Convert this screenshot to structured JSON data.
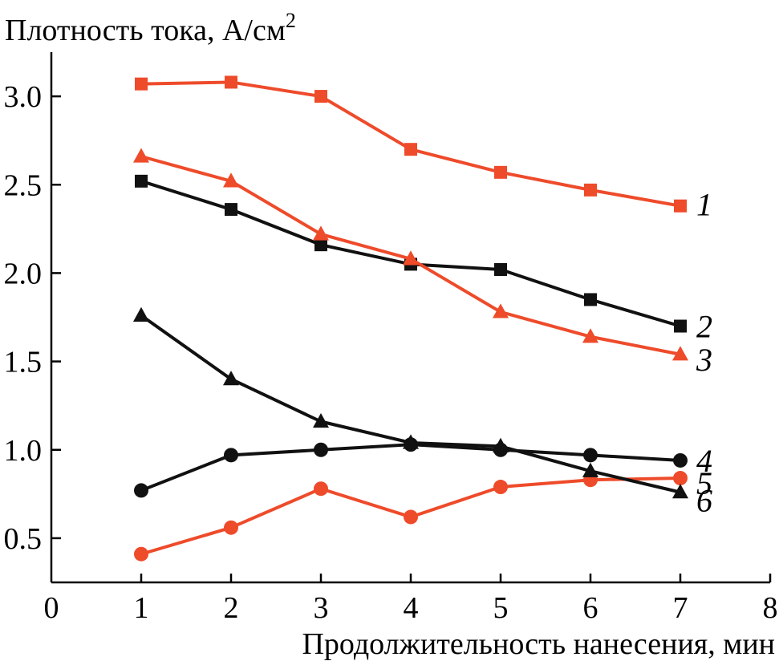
{
  "chart_data": {
    "type": "line",
    "title": "",
    "ylabel": "Плотность тока, А/см",
    "ylabel_sup": "2",
    "xlabel": "Продолжительность нанесения, мин",
    "xlim": [
      0,
      8
    ],
    "ylim": [
      0.25,
      3.25
    ],
    "xticks": [
      0,
      1,
      2,
      3,
      4,
      5,
      6,
      7,
      8
    ],
    "xtick_labels": [
      "0",
      "1",
      "2",
      "3",
      "4",
      "5",
      "6",
      "7",
      "8"
    ],
    "yticks": [
      0.5,
      1.0,
      1.5,
      2.0,
      2.5,
      3.0
    ],
    "ytick_labels": [
      "0.5",
      "1.0",
      "1.5",
      "2.0",
      "2.5",
      "3.0"
    ],
    "grid": false,
    "series": [
      {
        "name": "1",
        "label": "1",
        "color": "#ee4b2b",
        "marker": "square",
        "x": [
          1,
          2,
          3,
          4,
          5,
          6,
          7
        ],
        "values": [
          3.07,
          3.08,
          3.0,
          2.7,
          2.57,
          2.47,
          2.38
        ]
      },
      {
        "name": "2",
        "label": "2",
        "color": "#111111",
        "marker": "square",
        "x": [
          1,
          2,
          3,
          4,
          5,
          6,
          7
        ],
        "values": [
          2.52,
          2.36,
          2.16,
          2.05,
          2.02,
          1.85,
          1.7
        ]
      },
      {
        "name": "3",
        "label": "3",
        "color": "#ee4b2b",
        "marker": "triangle",
        "x": [
          1,
          2,
          3,
          4,
          5,
          6,
          7
        ],
        "values": [
          2.66,
          2.52,
          2.22,
          2.08,
          1.78,
          1.64,
          1.54
        ]
      },
      {
        "name": "4",
        "label": "4",
        "color": "#111111",
        "marker": "circle",
        "x": [
          1,
          2,
          3,
          4,
          5,
          6,
          7
        ],
        "values": [
          0.77,
          0.97,
          1.0,
          1.03,
          1.0,
          0.97,
          0.94
        ]
      },
      {
        "name": "5",
        "label": "5",
        "color": "#ee4b2b",
        "marker": "circle",
        "x": [
          1,
          2,
          3,
          4,
          5,
          6,
          7
        ],
        "values": [
          0.41,
          0.56,
          0.78,
          0.62,
          0.79,
          0.83,
          0.84
        ]
      },
      {
        "name": "6",
        "label": "6",
        "color": "#111111",
        "marker": "triangle",
        "x": [
          1,
          2,
          3,
          4,
          5,
          6,
          7
        ],
        "values": [
          1.76,
          1.4,
          1.16,
          1.04,
          1.02,
          0.88,
          0.76
        ]
      }
    ]
  }
}
